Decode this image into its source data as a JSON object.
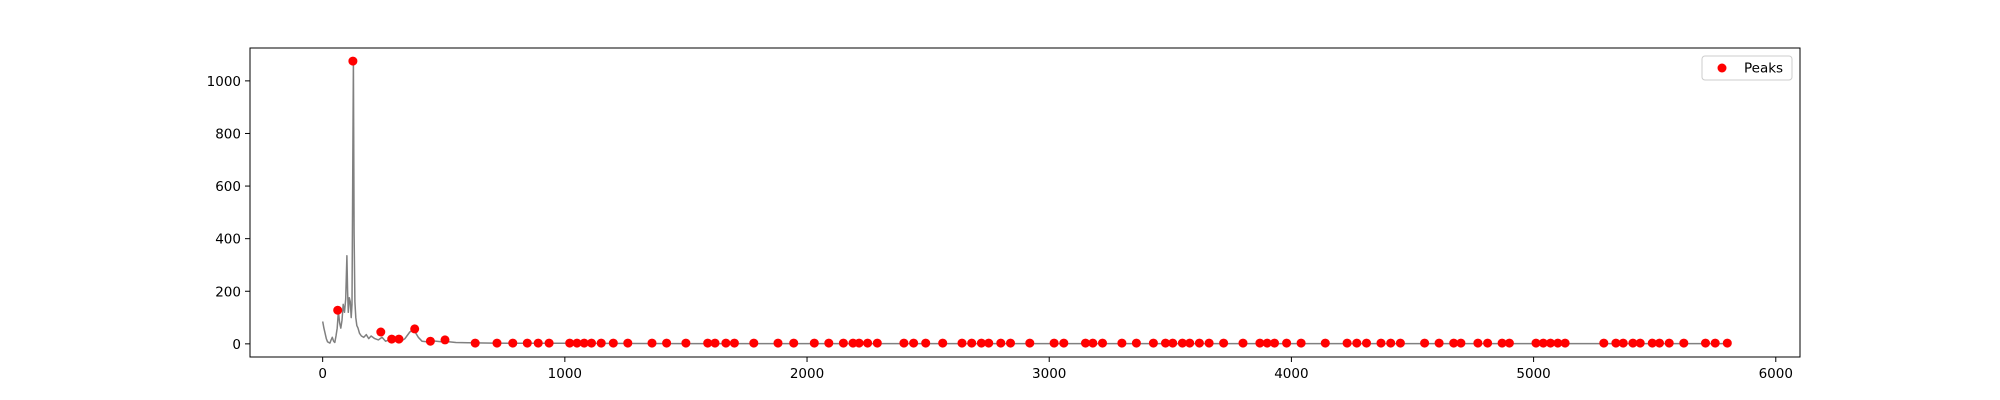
{
  "chart_data": {
    "type": "line",
    "title": "",
    "xlabel": "",
    "ylabel": "",
    "xlim": [
      -300,
      6100
    ],
    "ylim": [
      -50,
      1125
    ],
    "x_ticks": [
      0,
      1000,
      2000,
      3000,
      4000,
      5000,
      6000
    ],
    "y_ticks": [
      0,
      200,
      400,
      600,
      800,
      1000
    ],
    "grid": false,
    "legend": {
      "placement": "top-right",
      "entries": [
        "Peaks"
      ]
    },
    "colors": {
      "line": "#808080",
      "peaks": "#ff0000",
      "axes": "#000000"
    },
    "series": [
      {
        "kind": "line",
        "x": [
          0,
          5,
          10,
          15,
          20,
          25,
          30,
          35,
          40,
          45,
          50,
          55,
          60,
          65,
          70,
          75,
          80,
          85,
          90,
          95,
          100,
          103,
          106,
          110,
          114,
          118,
          121,
          124,
          127,
          130,
          133,
          137,
          141,
          146,
          152,
          160,
          170,
          180,
          190,
          200,
          215,
          230,
          245,
          260,
          275,
          290,
          305,
          320,
          340,
          360,
          375,
          385,
          395,
          410,
          430,
          450,
          470,
          490,
          500,
          520,
          550,
          600,
          700,
          800,
          1000,
          1500,
          2000,
          3000,
          4000,
          5000,
          5800
        ],
        "y": [
          85,
          60,
          40,
          20,
          8,
          5,
          3,
          15,
          25,
          10,
          5,
          30,
          60,
          125,
          80,
          60,
          90,
          150,
          120,
          170,
          335,
          200,
          120,
          175,
          160,
          100,
          150,
          620,
          1075,
          420,
          160,
          100,
          70,
          60,
          40,
          30,
          25,
          35,
          20,
          30,
          20,
          15,
          25,
          10,
          15,
          20,
          12,
          8,
          20,
          45,
          55,
          40,
          25,
          10,
          8,
          12,
          10,
          8,
          15,
          8,
          5,
          4,
          3,
          2,
          2,
          1,
          1,
          1,
          1,
          1,
          1
        ]
      },
      {
        "name": "Peaks",
        "kind": "scatter",
        "x": [
          62,
          125,
          240,
          285,
          315,
          380,
          445,
          505,
          630,
          720,
          785,
          845,
          890,
          935,
          1020,
          1050,
          1080,
          1110,
          1150,
          1200,
          1260,
          1360,
          1420,
          1500,
          1590,
          1620,
          1665,
          1700,
          1780,
          1880,
          1945,
          2030,
          2090,
          2150,
          2190,
          2215,
          2250,
          2290,
          2400,
          2440,
          2490,
          2560,
          2640,
          2680,
          2720,
          2750,
          2800,
          2840,
          2920,
          3020,
          3060,
          3150,
          3180,
          3220,
          3300,
          3360,
          3430,
          3480,
          3510,
          3550,
          3580,
          3620,
          3660,
          3720,
          3800,
          3870,
          3900,
          3930,
          3980,
          4040,
          4140,
          4230,
          4270,
          4310,
          4370,
          4410,
          4450,
          4550,
          4610,
          4670,
          4700,
          4770,
          4810,
          4870,
          4900,
          5010,
          5040,
          5070,
          5100,
          5130,
          5290,
          5340,
          5370,
          5410,
          5440,
          5490,
          5520,
          5560,
          5620,
          5710,
          5750,
          5800
        ],
        "y": [
          128,
          1075,
          45,
          18,
          18,
          57,
          10,
          15,
          3,
          3,
          3,
          3,
          3,
          3,
          3,
          3,
          3,
          3,
          3,
          3,
          3,
          3,
          3,
          3,
          3,
          3,
          3,
          3,
          3,
          3,
          3,
          3,
          3,
          3,
          3,
          3,
          3,
          3,
          3,
          3,
          3,
          3,
          3,
          3,
          3,
          3,
          3,
          3,
          3,
          3,
          3,
          3,
          3,
          3,
          3,
          3,
          3,
          3,
          3,
          3,
          3,
          3,
          3,
          3,
          3,
          3,
          3,
          3,
          3,
          3,
          3,
          3,
          3,
          3,
          3,
          3,
          3,
          3,
          3,
          3,
          3,
          3,
          3,
          3,
          3,
          3,
          3,
          3,
          3,
          3,
          3,
          3,
          3,
          3,
          3,
          3,
          3,
          3,
          3,
          3,
          3,
          3
        ]
      }
    ]
  }
}
